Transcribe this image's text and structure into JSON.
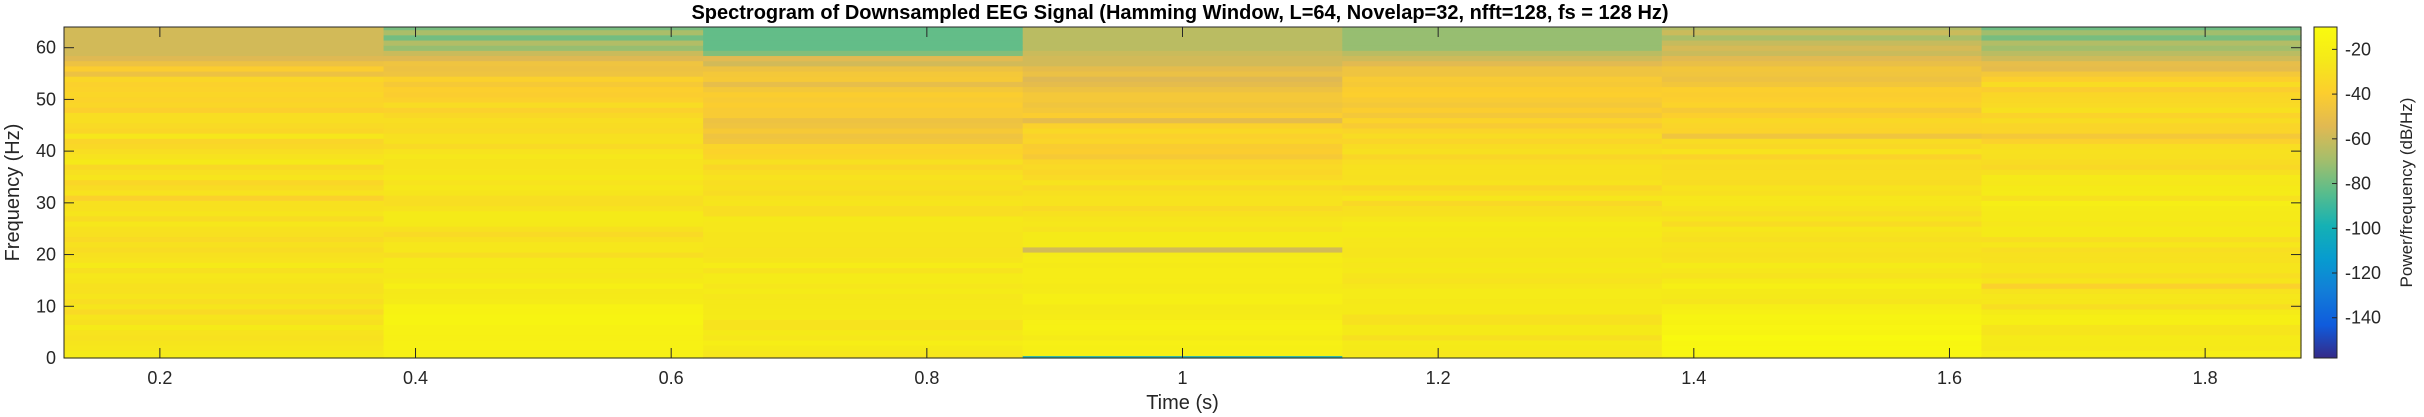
{
  "chart_data": {
    "type": "heatmap",
    "title": "Spectrogram of Downsampled EEG Signal (Hamming Window, L=64, Novelap=32, nfft=128, fs = 128 Hz)",
    "xlabel": "Time (s)",
    "ylabel": "Frequency (Hz)",
    "colorbar_label": "Power/frequency (dB/Hz)",
    "colormap": "parula",
    "x_ticks": [
      0.2,
      0.4,
      0.6,
      0.8,
      1,
      1.2,
      1.4,
      1.6,
      1.8
    ],
    "y_ticks": [
      0,
      10,
      20,
      30,
      40,
      50,
      60
    ],
    "colorbar_ticks": [
      -140,
      -120,
      -100,
      -80,
      -60,
      -40,
      -20
    ],
    "xlim": [
      0.125,
      1.875
    ],
    "ylim": [
      0,
      64
    ],
    "clim": [
      -158,
      -10
    ],
    "grid": false,
    "time_frames_s": [
      0.25,
      0.5,
      0.75,
      1.0,
      1.25,
      1.5,
      1.75
    ],
    "frequency_bins_hz": [
      0,
      1,
      2,
      3,
      4,
      5,
      6,
      7,
      8,
      9,
      10,
      11,
      12,
      13,
      14,
      15,
      16,
      17,
      18,
      19,
      20,
      21,
      22,
      23,
      24,
      25,
      26,
      27,
      28,
      29,
      30,
      31,
      32,
      33,
      34,
      35,
      36,
      37,
      38,
      39,
      40,
      41,
      42,
      43,
      44,
      45,
      46,
      47,
      48,
      49,
      50,
      51,
      52,
      53,
      54,
      55,
      56,
      57,
      58,
      59,
      60,
      61,
      62,
      63,
      64
    ],
    "power_db_per_hz": [
      [
        -22,
        -24,
        -26,
        -27,
        -29,
        -28,
        -24,
        -30,
        -27,
        -33,
        -27,
        -31,
        -27,
        -29,
        -29,
        -27,
        -26,
        -30,
        -24,
        -28,
        -29,
        -32,
        -29,
        -33,
        -30,
        -29,
        -26,
        -32,
        -27,
        -29,
        -29,
        -38,
        -28,
        -32,
        -35,
        -27,
        -30,
        -34,
        -25,
        -28,
        -31,
        -34,
        -36,
        -26,
        -35,
        -33,
        -31,
        -31,
        -39,
        -35,
        -37,
        -35,
        -37,
        -38,
        -35,
        -48,
        -40,
        -48,
        -55,
        -58,
        -58,
        -58,
        -58,
        -58,
        -58
      ],
      [
        -18,
        -19,
        -18,
        -18,
        -19,
        -18,
        -18,
        -16,
        -16,
        -17,
        -17,
        -23,
        -24,
        -25,
        -20,
        -24,
        -26,
        -25,
        -24,
        -24,
        -31,
        -26,
        -26,
        -29,
        -33,
        -29,
        -25,
        -24,
        -24,
        -28,
        -31,
        -31,
        -27,
        -26,
        -28,
        -25,
        -27,
        -28,
        -28,
        -26,
        -28,
        -33,
        -29,
        -30,
        -33,
        -32,
        -31,
        -34,
        -38,
        -32,
        -38,
        -40,
        -39,
        -43,
        -38,
        -47,
        -48,
        -47,
        -55,
        -60,
        -72,
        -66,
        -79,
        -68,
        -78
      ],
      [
        -28,
        -26,
        -24,
        -21,
        -26,
        -24,
        -28,
        -28,
        -23,
        -24,
        -25,
        -25,
        -26,
        -23,
        -26,
        -23,
        -23,
        -28,
        -22,
        -27,
        -28,
        -28,
        -27,
        -27,
        -27,
        -26,
        -26,
        -25,
        -31,
        -31,
        -27,
        -28,
        -32,
        -30,
        -31,
        -28,
        -31,
        -35,
        -30,
        -35,
        -37,
        -36,
        -45,
        -47,
        -43,
        -47,
        -48,
        -42,
        -42,
        -40,
        -42,
        -40,
        -44,
        -51,
        -43,
        -44,
        -48,
        -58,
        -54,
        -76,
        -82,
        -82,
        -82,
        -82,
        -82
      ],
      [
        -92,
        -20,
        -20,
        -19,
        -23,
        -20,
        -18,
        -19,
        -22,
        -23,
        -24,
        -20,
        -20,
        -23,
        -24,
        -22,
        -22,
        -22,
        -24,
        -22,
        -23,
        -58,
        -24,
        -24,
        -24,
        -28,
        -26,
        -27,
        -29,
        -33,
        -28,
        -28,
        -30,
        -33,
        -28,
        -33,
        -35,
        -33,
        -35,
        -43,
        -40,
        -41,
        -36,
        -38,
        -34,
        -38,
        -52,
        -40,
        -44,
        -46,
        -44,
        -44,
        -48,
        -52,
        -55,
        -49,
        -52,
        -58,
        -58,
        -60,
        -64,
        -64,
        -64,
        -64,
        -64
      ],
      [
        -23,
        -26,
        -24,
        -23,
        -30,
        -24,
        -24,
        -29,
        -29,
        -24,
        -24,
        -25,
        -23,
        -23,
        -26,
        -28,
        -27,
        -25,
        -26,
        -25,
        -27,
        -27,
        -26,
        -26,
        -24,
        -25,
        -23,
        -26,
        -29,
        -30,
        -34,
        -26,
        -31,
        -35,
        -28,
        -30,
        -29,
        -29,
        -31,
        -35,
        -30,
        -32,
        -36,
        -32,
        -36,
        -42,
        -37,
        -44,
        -40,
        -44,
        -42,
        -39,
        -40,
        -43,
        -42,
        -47,
        -47,
        -54,
        -59,
        -64,
        -72,
        -72,
        -72,
        -72,
        -72
      ],
      [
        -18,
        -14,
        -13,
        -14,
        -12,
        -16,
        -15,
        -17,
        -16,
        -19,
        -21,
        -27,
        -25,
        -24,
        -20,
        -24,
        -28,
        -26,
        -23,
        -28,
        -29,
        -28,
        -27,
        -30,
        -28,
        -26,
        -32,
        -27,
        -31,
        -28,
        -26,
        -26,
        -30,
        -28,
        -32,
        -31,
        -31,
        -32,
        -31,
        -37,
        -28,
        -34,
        -32,
        -46,
        -37,
        -36,
        -34,
        -39,
        -43,
        -37,
        -39,
        -40,
        -39,
        -45,
        -48,
        -46,
        -45,
        -50,
        -54,
        -60,
        -57,
        -61,
        -68,
        -60,
        -66
      ],
      [
        -24,
        -21,
        -25,
        -24,
        -23,
        -27,
        -27,
        -20,
        -20,
        -23,
        -31,
        -26,
        -26,
        -28,
        -38,
        -27,
        -31,
        -27,
        -27,
        -29,
        -29,
        -31,
        -26,
        -31,
        -24,
        -24,
        -26,
        -24,
        -24,
        -23,
        -21,
        -29,
        -23,
        -24,
        -26,
        -24,
        -30,
        -34,
        -32,
        -30,
        -29,
        -31,
        -38,
        -44,
        -36,
        -36,
        -32,
        -37,
        -30,
        -33,
        -34,
        -35,
        -40,
        -32,
        -39,
        -44,
        -52,
        -51,
        -59,
        -64,
        -70,
        -66,
        -78,
        -70,
        -80
      ]
    ]
  }
}
